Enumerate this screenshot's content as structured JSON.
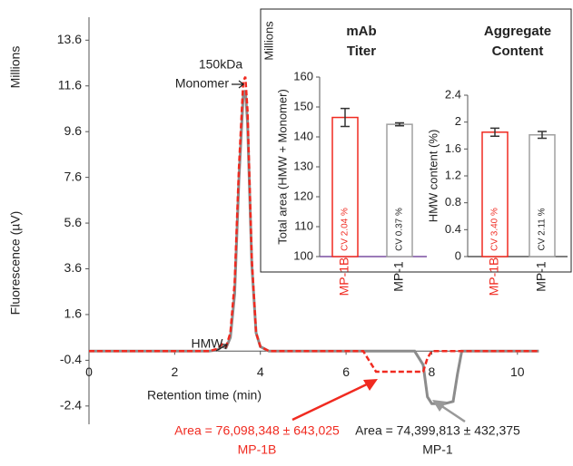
{
  "chart_data": [
    {
      "type": "line",
      "y_unit_label": "Millions",
      "ylabel": "Fluorescence (µV)",
      "xlabel": "Retention time (min)",
      "x": [
        0,
        2.8,
        3.0,
        3.1,
        3.2,
        3.3,
        3.4,
        3.5,
        3.6,
        3.65,
        3.7,
        3.8,
        3.9,
        4.0,
        4.2,
        6.4,
        6.6,
        6.7,
        7.6,
        7.8,
        7.9,
        8.0,
        8.3,
        8.5,
        8.6,
        8.7,
        10.5
      ],
      "series": [
        {
          "name": "MP-1B",
          "color": "#f02a20",
          "values": [
            0,
            0,
            0.1,
            0.3,
            0.2,
            0.8,
            3.0,
            8.0,
            11.8,
            12.0,
            10.5,
            4.0,
            0.8,
            0.2,
            0,
            0,
            -0.6,
            -0.9,
            -0.9,
            -0.9,
            -0.3,
            0,
            0,
            0,
            0,
            0,
            0
          ]
        },
        {
          "name": "MP-1",
          "color": "#8c8c8c",
          "values": [
            0,
            0,
            0.05,
            0.2,
            0.15,
            0.6,
            2.5,
            7.5,
            11.2,
            11.4,
            10.0,
            3.8,
            0.8,
            0.2,
            0,
            0,
            0,
            0,
            0,
            -0.6,
            -2.0,
            -2.3,
            -2.3,
            -2.2,
            -1.0,
            0,
            0
          ]
        }
      ],
      "xlim": [
        0,
        11
      ],
      "xticks": [
        0,
        2,
        4,
        6,
        8,
        10
      ],
      "ylim": [
        -3.2,
        15
      ],
      "yticks": [
        13.6,
        11.6,
        9.6,
        7.6,
        5.6,
        3.6,
        1.6,
        -0.4,
        -2.4
      ],
      "annotations": [
        "150kDa",
        "Monomer",
        "HMW"
      ],
      "area_labels": [
        {
          "text": "Area = 76,098,348 ± 643,025",
          "sample": "MP-1B",
          "color": "#f02a20"
        },
        {
          "text": "Area = 74,399,813 ± 432,375",
          "sample": "MP-1",
          "color": "#222222"
        }
      ]
    },
    {
      "type": "bar",
      "title": [
        "mAb",
        "Titer"
      ],
      "y_unit_label": "Millions",
      "ylabel": "Total area (HMW + Monomer)",
      "categories": [
        "MP-1B",
        "MP-1"
      ],
      "category_colors": [
        "#f02a20",
        "#222222"
      ],
      "values": [
        146.5,
        144.2
      ],
      "errors": [
        3.0,
        0.5
      ],
      "bar_colors": [
        "#f02a20",
        "#a0a0a0"
      ],
      "bar_labels": [
        "CV  2.04 %",
        "CV  0.37 %"
      ],
      "ylim": [
        100,
        160
      ],
      "yticks": [
        100,
        110,
        120,
        130,
        140,
        150,
        160
      ]
    },
    {
      "type": "bar",
      "title": [
        "Aggregate",
        "Content"
      ],
      "ylabel": "HMW content (%)",
      "categories": [
        "MP-1B",
        "MP-1"
      ],
      "category_colors": [
        "#f02a20",
        "#222222"
      ],
      "values": [
        1.85,
        1.81
      ],
      "errors": [
        0.06,
        0.05
      ],
      "bar_colors": [
        "#f02a20",
        "#a0a0a0"
      ],
      "bar_labels": [
        "CV  3.40 %",
        "CV  2.11 %"
      ],
      "ylim": [
        0,
        2.4
      ],
      "yticks": [
        0,
        0.4,
        0.8,
        1.2,
        1.6,
        2,
        2.4
      ]
    }
  ]
}
